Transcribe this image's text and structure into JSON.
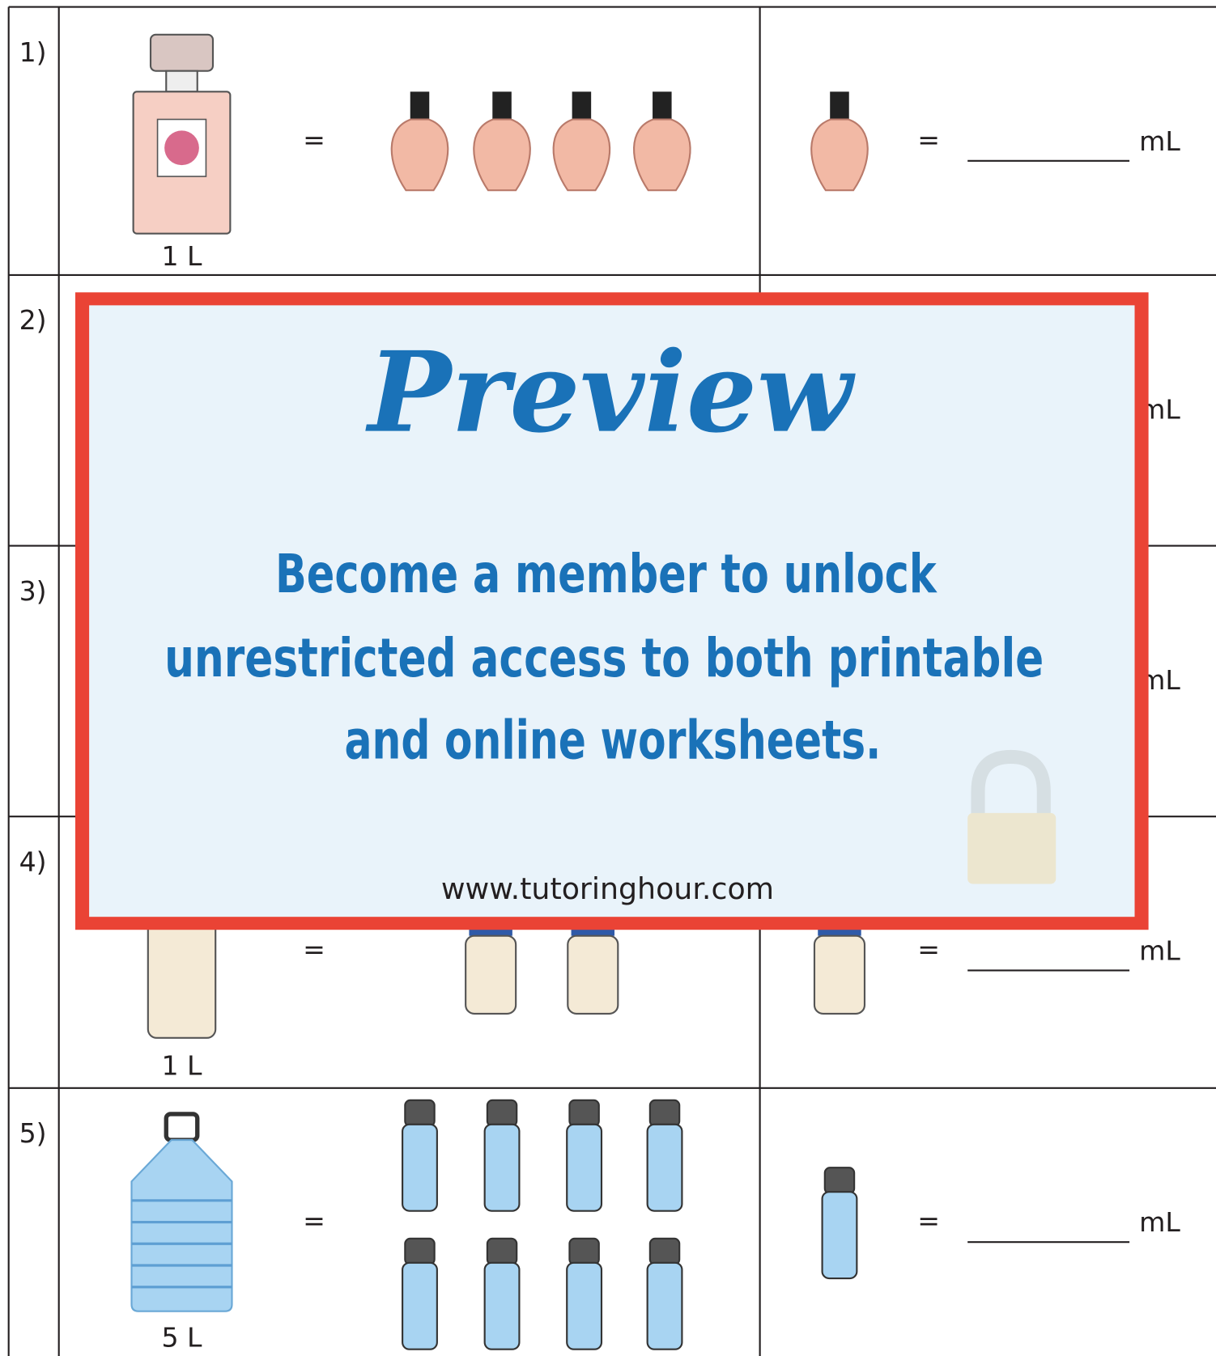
{
  "rows": [
    {
      "number": "1)",
      "capacity": "1 L",
      "equals": "=",
      "unit": "mL"
    },
    {
      "number": "2)",
      "unit": "mL"
    },
    {
      "number": "3)",
      "unit": "mL"
    },
    {
      "number": "4)",
      "capacity": "1 L",
      "equals": "=",
      "unit": "mL"
    },
    {
      "number": "5)",
      "capacity": "5 L",
      "equals": "=",
      "unit": "mL"
    }
  ],
  "overlay": {
    "title": "Preview",
    "message": [
      "Become a member to unlock",
      "unrestricted access to both printable",
      "and online worksheets."
    ],
    "url": "www.tutoringhour.com"
  }
}
